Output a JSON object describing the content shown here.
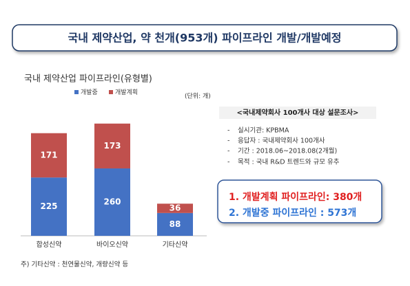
{
  "header": {
    "title": "국내 제약산업, 약 천개(953개) 파이프라인 개발/개발예정"
  },
  "chart_data": {
    "type": "bar",
    "stacked": true,
    "title": "국내 제약산업 파이프라인(유형별)",
    "unit": "(단위: 개)",
    "categories": [
      "합성신약",
      "바이오신약",
      "기타신약"
    ],
    "series": [
      {
        "name": "개발중",
        "color": "#4472c4",
        "values": [
          225,
          260,
          88
        ]
      },
      {
        "name": "개발계획",
        "color": "#c0504d",
        "values": [
          171,
          173,
          36
        ]
      }
    ]
  },
  "survey": {
    "title": "<국내제약회사 100개사 대상 설문조사>",
    "items": [
      "실시기관: KPBMA",
      "응답자 : 국내제약회사 100개사",
      "기간 : 2018.06~2018.08(2개월)",
      "목적 : 국내 R&D 트렌드와 규모 유추"
    ]
  },
  "summary": {
    "lines": [
      "1. 개발계획 파이프라인: 380개",
      "2. 개발중 파이프라인 : 573개"
    ]
  },
  "footnote": "주) 기타신약 : 천연물신약, 개량신약 등"
}
